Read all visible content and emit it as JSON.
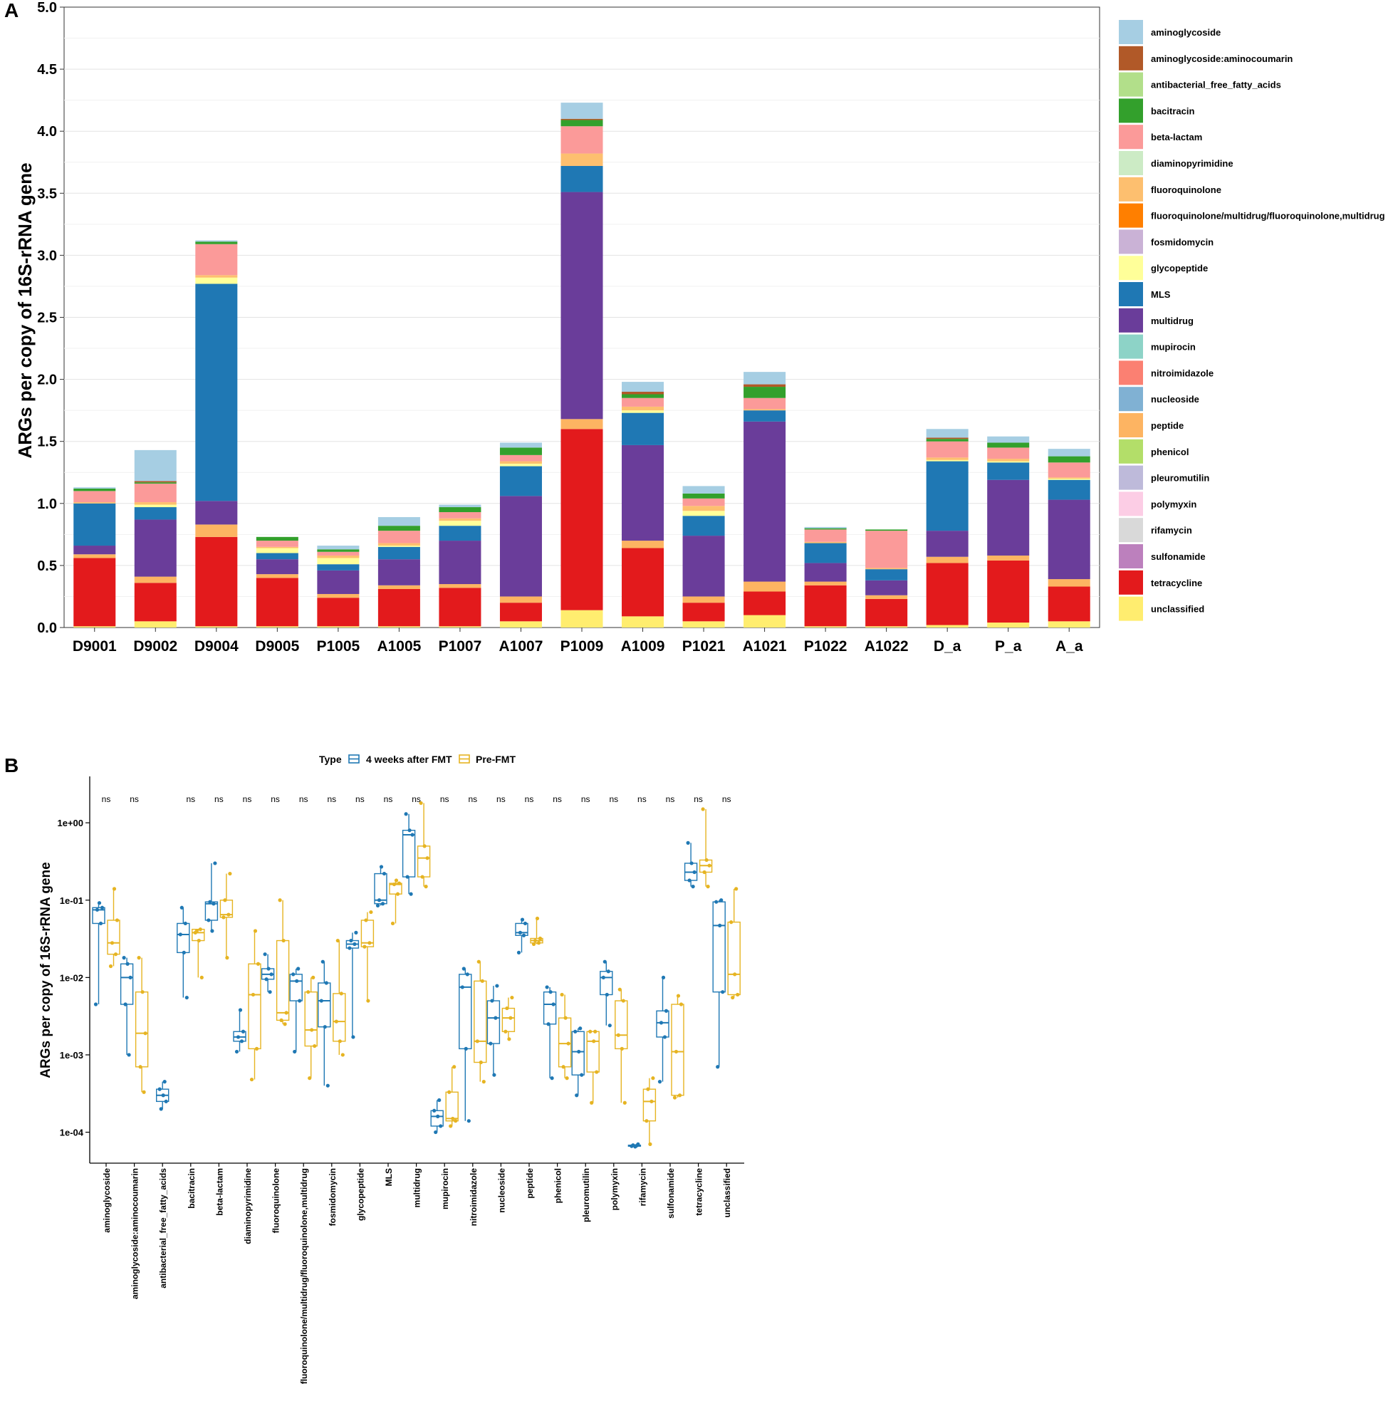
{
  "figure": {
    "panel_a_letter": "A",
    "panel_b_letter": "B"
  },
  "colors": {
    "aminoglycoside": "#a6cee3",
    "aminoglycoside:aminocoumarin": "#b15928",
    "antibacterial_free_fatty_acids": "#b2df8a",
    "bacitracin": "#33a02c",
    "beta-lactam": "#fb9a99",
    "diaminopyrimidine": "#ccebc5",
    "fluoroquinolone": "#fdbf6f",
    "fluoroquinolone/multidrug/fluoroquinolone,multidrug": "#ff7f00",
    "fosmidomycin": "#cab2d6",
    "glycopeptide": "#ffff99",
    "MLS": "#1f78b4",
    "multidrug": "#6a3d9a",
    "mupirocin": "#8dd3c7",
    "nitroimidazole": "#fb8072",
    "nucleoside": "#80b1d3",
    "peptide": "#fdb462",
    "phenicol": "#b3de69",
    "pleuromutilin": "#bebada",
    "polymyxin": "#fccde5",
    "rifamycin": "#d9d9d9",
    "sulfonamide": "#bc80bd",
    "tetracycline": "#e31a1c",
    "unclassified": "#ffed6f",
    "after": "#1f78b4",
    "pre": "#e6b422"
  },
  "chart_data": [
    {
      "type": "bar",
      "stacked": true,
      "panel": "A",
      "title": "",
      "xlabel": "",
      "ylabel": "ARGs per copy of 16S-rRNA gene",
      "ylim": [
        0,
        5
      ],
      "yticks": [
        "0.0",
        "0.5",
        "1.0",
        "1.5",
        "2.0",
        "2.5",
        "3.0",
        "3.5",
        "4.0",
        "4.5",
        "5.0"
      ],
      "legend_position": "right",
      "categories": [
        "D9001",
        "D9002",
        "D9004",
        "D9005",
        "P1005",
        "A1005",
        "P1007",
        "A1007",
        "P1009",
        "A1009",
        "P1021",
        "A1021",
        "P1022",
        "A1022",
        "D_a",
        "P_a",
        "A_a"
      ],
      "legend": [
        "aminoglycoside",
        "aminoglycoside:aminocoumarin",
        "antibacterial_free_fatty_acids",
        "bacitracin",
        "beta-lactam",
        "diaminopyrimidine",
        "fluoroquinolone",
        "fluoroquinolone/multidrug/fluoroquinolone,multidrug",
        "fosmidomycin",
        "glycopeptide",
        "MLS",
        "multidrug",
        "mupirocin",
        "nitroimidazole",
        "nucleoside",
        "peptide",
        "phenicol",
        "pleuromutilin",
        "polymyxin",
        "rifamycin",
        "sulfonamide",
        "tetracycline",
        "unclassified"
      ],
      "series": [
        {
          "name": "unclassified",
          "values": [
            0.01,
            0.05,
            0.01,
            0.01,
            0.01,
            0.01,
            0.01,
            0.05,
            0.14,
            0.09,
            0.05,
            0.1,
            0.01,
            0.01,
            0.02,
            0.04,
            0.05
          ]
        },
        {
          "name": "tetracycline",
          "values": [
            0.55,
            0.31,
            0.72,
            0.39,
            0.23,
            0.3,
            0.31,
            0.15,
            1.46,
            0.55,
            0.15,
            0.19,
            0.33,
            0.22,
            0.5,
            0.5,
            0.28
          ]
        },
        {
          "name": "peptide",
          "values": [
            0.03,
            0.05,
            0.1,
            0.03,
            0.03,
            0.03,
            0.03,
            0.05,
            0.08,
            0.06,
            0.05,
            0.08,
            0.03,
            0.03,
            0.05,
            0.04,
            0.06
          ]
        },
        {
          "name": "multidrug",
          "values": [
            0.07,
            0.46,
            0.19,
            0.12,
            0.19,
            0.21,
            0.35,
            0.81,
            1.83,
            0.77,
            0.49,
            1.29,
            0.15,
            0.12,
            0.21,
            0.61,
            0.64
          ]
        },
        {
          "name": "MLS",
          "values": [
            0.34,
            0.1,
            1.75,
            0.05,
            0.05,
            0.1,
            0.12,
            0.24,
            0.21,
            0.26,
            0.16,
            0.09,
            0.16,
            0.09,
            0.56,
            0.14,
            0.16
          ]
        },
        {
          "name": "glycopeptide",
          "values": [
            0.0,
            0.02,
            0.05,
            0.04,
            0.05,
            0.01,
            0.04,
            0.02,
            0.0,
            0.02,
            0.04,
            0.0,
            0.0,
            0.0,
            0.01,
            0.01,
            0.01
          ]
        },
        {
          "name": "fluoroquinolone",
          "values": [
            0.01,
            0.02,
            0.02,
            0.01,
            0.02,
            0.02,
            0.02,
            0.02,
            0.1,
            0.03,
            0.04,
            0.01,
            0.01,
            0.01,
            0.02,
            0.02,
            0.01
          ]
        },
        {
          "name": "beta-lactam",
          "values": [
            0.09,
            0.15,
            0.25,
            0.05,
            0.03,
            0.1,
            0.05,
            0.05,
            0.22,
            0.07,
            0.06,
            0.09,
            0.1,
            0.3,
            0.13,
            0.09,
            0.12
          ]
        },
        {
          "name": "bacitracin",
          "values": [
            0.02,
            0.01,
            0.02,
            0.03,
            0.02,
            0.04,
            0.04,
            0.06,
            0.05,
            0.03,
            0.04,
            0.09,
            0.01,
            0.01,
            0.02,
            0.04,
            0.05
          ]
        },
        {
          "name": "aminoglycoside:aminocoumarin",
          "values": [
            0.0,
            0.01,
            0.0,
            0.0,
            0.0,
            0.0,
            0.0,
            0.0,
            0.01,
            0.02,
            0.0,
            0.02,
            0.0,
            0.0,
            0.01,
            0.0,
            0.0
          ]
        },
        {
          "name": "aminoglycoside",
          "values": [
            0.01,
            0.25,
            0.01,
            0.0,
            0.03,
            0.07,
            0.02,
            0.04,
            0.13,
            0.08,
            0.06,
            0.1,
            0.01,
            0.0,
            0.07,
            0.05,
            0.06
          ]
        }
      ]
    },
    {
      "type": "box",
      "panel": "B",
      "scale": "log10",
      "ylabel": "ARGs per copy of 16S-rRNA gene",
      "yticks": [
        "1e-04",
        "1e-03",
        "1e-02",
        "1e-01",
        "1e+00"
      ],
      "ylim_log10": [
        -4.4,
        0.6
      ],
      "legend_title": "Type",
      "groups": [
        "4 weeks after FMT",
        "Pre-FMT"
      ],
      "categories": [
        "aminoglycoside",
        "aminoglycoside:aminocoumarin",
        "antibacterial_free_fatty_acids",
        "bacitracin",
        "beta-lactam",
        "diaminopyrimidine",
        "fluoroquinolone",
        "fluoroquinolone/multidrug/fluoroquinolone,multidrug",
        "fosmidomycin",
        "glycopeptide",
        "MLS",
        "multidrug",
        "mupirocin",
        "nitroimidazole",
        "nucleoside",
        "peptide",
        "phenicol",
        "pleuromutilin",
        "polymyxin",
        "rifamycin",
        "sulfonamide",
        "tetracycline",
        "unclassified"
      ],
      "significance": [
        "ns",
        "ns",
        "",
        "ns",
        "ns",
        "ns",
        "ns",
        "ns",
        "ns",
        "ns",
        "ns",
        "ns",
        "ns",
        "ns",
        "ns",
        "ns",
        "ns",
        "ns",
        "ns",
        "ns",
        "ns",
        "ns",
        "ns"
      ],
      "after": [
        [
          0.0045,
          0.05,
          0.075,
          0.08,
          0.092
        ],
        [
          0.001,
          0.0045,
          0.01,
          0.015,
          0.018
        ],
        [
          0.0002,
          0.00025,
          0.0003,
          0.00036,
          0.00045
        ],
        [
          0.0055,
          0.021,
          0.036,
          0.05,
          0.08
        ],
        [
          0.04,
          0.055,
          0.09,
          0.095,
          0.3
        ],
        [
          0.0011,
          0.0015,
          0.0017,
          0.002,
          0.0038
        ],
        [
          0.0065,
          0.0095,
          0.011,
          0.013,
          0.02
        ],
        [
          0.0011,
          0.005,
          0.009,
          0.011,
          0.013
        ],
        [
          0.0004,
          0.0023,
          0.005,
          0.0085,
          0.016
        ],
        [
          0.0017,
          0.024,
          0.027,
          0.03,
          0.038
        ],
        [
          0.085,
          0.09,
          0.1,
          0.22,
          0.27
        ],
        [
          0.12,
          0.2,
          0.7,
          0.8,
          1.3
        ],
        [
          0.0001,
          0.00012,
          0.00016,
          0.00019,
          0.00026
        ],
        [
          0.00014,
          0.0012,
          0.0075,
          0.011,
          0.013
        ],
        [
          0.00055,
          0.0014,
          0.003,
          0.005,
          0.0078
        ],
        [
          0.021,
          0.035,
          0.038,
          0.05,
          0.056
        ],
        [
          0.0005,
          0.0025,
          0.0045,
          0.0065,
          0.0075
        ],
        [
          0.0003,
          0.00055,
          0.0011,
          0.002,
          0.0022
        ],
        [
          0.0024,
          0.006,
          0.01,
          0.012,
          0.016
        ],
        [
          6.5e-05,
          6.6e-05,
          6.7e-05,
          6.8e-05,
          7e-05
        ],
        [
          0.00045,
          0.0017,
          0.0026,
          0.0037,
          0.01
        ],
        [
          0.15,
          0.18,
          0.23,
          0.3,
          0.55
        ],
        [
          0.0007,
          0.0065,
          0.047,
          0.095,
          0.1
        ]
      ],
      "pre": [
        [
          0.014,
          0.02,
          0.028,
          0.055,
          0.14
        ],
        [
          0.00033,
          0.0007,
          0.0019,
          0.0065,
          0.018
        ],
        null,
        [
          0.01,
          0.03,
          0.038,
          0.042,
          0.04
        ],
        [
          0.018,
          0.06,
          0.065,
          0.1,
          0.22
        ],
        [
          0.00048,
          0.0012,
          0.006,
          0.015,
          0.04
        ],
        [
          0.0025,
          0.0028,
          0.0035,
          0.03,
          0.1
        ],
        [
          0.0005,
          0.0013,
          0.0021,
          0.0065,
          0.01
        ],
        [
          0.001,
          0.0015,
          0.0027,
          0.0062,
          0.03
        ],
        [
          0.005,
          0.025,
          0.028,
          0.055,
          0.07
        ],
        [
          0.05,
          0.12,
          0.16,
          0.165,
          0.18
        ],
        [
          0.15,
          0.2,
          0.35,
          0.5,
          1.8
        ],
        [
          0.00012,
          0.00014,
          0.00015,
          0.00033,
          0.0007
        ],
        [
          0.00045,
          0.0008,
          0.0015,
          0.009,
          0.016
        ],
        [
          0.0016,
          0.002,
          0.003,
          0.004,
          0.0055
        ],
        [
          0.027,
          0.028,
          0.03,
          0.032,
          0.058
        ],
        [
          0.0005,
          0.0007,
          0.0014,
          0.003,
          0.006
        ],
        [
          0.00024,
          0.0006,
          0.0015,
          0.002,
          0.002
        ],
        [
          0.00024,
          0.0012,
          0.0018,
          0.005,
          0.007
        ],
        [
          7e-05,
          0.00014,
          0.00025,
          0.00036,
          0.0005
        ],
        [
          0.00028,
          0.0003,
          0.0011,
          0.0045,
          0.0058
        ],
        [
          0.15,
          0.23,
          0.28,
          0.33,
          1.5
        ],
        [
          0.0055,
          0.006,
          0.011,
          0.052,
          0.14
        ]
      ]
    }
  ]
}
